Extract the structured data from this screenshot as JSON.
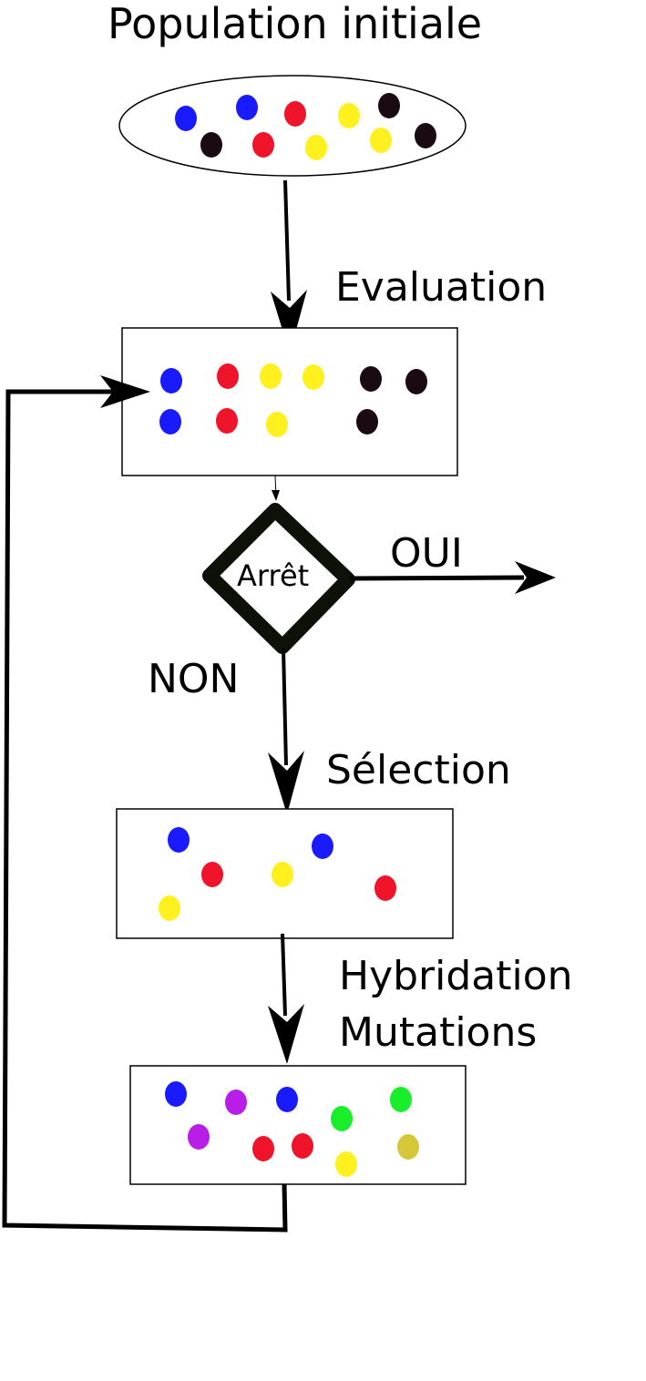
{
  "labels": {
    "population": "Population initiale",
    "evaluation": "Evaluation",
    "decision": "Arrêt",
    "yes": "OUI",
    "no": "NON",
    "selection": "Sélection",
    "hybridation": "Hybridation",
    "mutations": "Mutations"
  },
  "colors": {
    "blue": "#1a1aff",
    "red": "#f0142a",
    "yellow": "#fff01e",
    "black": "#1a0a14",
    "purple": "#b81ee8",
    "green": "#1aee2a",
    "olive": "#d4c83a"
  },
  "nodes": [
    {
      "id": "population",
      "individuals": [
        "blue",
        "blue",
        "red",
        "yellow",
        "black",
        "black",
        "red",
        "yellow",
        "yellow",
        "black"
      ]
    },
    {
      "id": "evaluation",
      "individuals": [
        "blue",
        "red",
        "yellow",
        "yellow",
        "black",
        "black",
        "blue",
        "red",
        "yellow",
        "black"
      ]
    },
    {
      "id": "selection",
      "individuals": [
        "blue",
        "blue",
        "red",
        "yellow",
        "red",
        "yellow"
      ]
    },
    {
      "id": "hybridation-mutations",
      "individuals": [
        "blue",
        "purple",
        "blue",
        "green",
        "green",
        "purple",
        "red",
        "red",
        "yellow",
        "olive"
      ]
    }
  ]
}
